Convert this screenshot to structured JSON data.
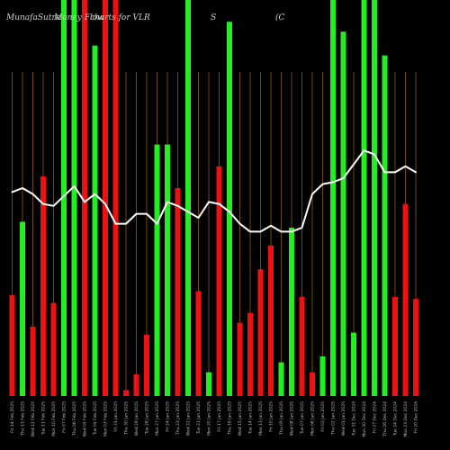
{
  "header": {
    "site": "MunafaSutra",
    "chart_label": "Money Flow",
    "charts_for": "charts for VLR",
    "segment_s": "S",
    "segment_c": "(C"
  },
  "chart_data": {
    "type": "bar",
    "title": "MunafaSutra Money Flow charts for VLR",
    "xlabel": "",
    "ylabel": "",
    "ylim": [
      0,
      100
    ],
    "grid": true,
    "colors": {
      "up": "#22ee22",
      "down": "#ee1111",
      "line": "#ffffff",
      "grid": "#8a5a10",
      "background": "#000000"
    },
    "categories": [
      "Fri 14 Feb 2025",
      "Thu 13 Feb 2025",
      "Wed 12 Feb 2025",
      "Tue 11 Feb 2025",
      "Mon 10 Feb 2025",
      "Fri 07 Feb 2025",
      "Thu 06 Feb 2025",
      "Wed 05 Feb 2025",
      "Tue 04 Feb 2025",
      "Mon 03 Feb 2025",
      "Fri 31 Jan 2025",
      "Thu 30 Jan 2025",
      "Wed 29 Jan 2025",
      "Tue 28 Jan 2025",
      "Mon 27 Jan 2025",
      "Fri 24 Jan 2025",
      "Thu 23 Jan 2025",
      "Wed 22 Jan 2025",
      "Tue 21 Jan 2025",
      "Mon 20 Jan 2025",
      "Fri 17 Jan 2025",
      "Thu 16 Jan 2025",
      "Wed 15 Jan 2025",
      "Tue 14 Jan 2025",
      "Mon 13 Jan 2025",
      "Fri 10 Jan 2025",
      "Thu 09 Jan 2025",
      "Wed 08 Jan 2025",
      "Tue 07 Jan 2025",
      "Mon 06 Jan 2025",
      "Fri 03 Jan 2025",
      "Thu 02 Jan 2025",
      "Wed 01 Jan 2025",
      "Tue 31 Dec 2024",
      "Mon 30 Dec 2024",
      "Fri 27 Dec 2024",
      "Thu 26 Dec 2024",
      "Tue 24 Dec 2024",
      "Mon 23 Dec 2024",
      "Fri 20 Dec 2024"
    ],
    "series": [
      {
        "kind": "bar",
        "values": [
          25.5,
          44,
          17.5,
          55.5,
          23.5,
          100,
          100,
          100,
          88.5,
          100,
          100,
          1.5,
          5.5,
          15.5,
          63.5,
          63.5,
          52.5,
          100,
          26.5,
          6,
          58,
          94.5,
          18.5,
          21,
          32,
          38,
          8.5,
          42.5,
          25,
          6,
          10,
          100,
          92,
          16,
          100,
          100,
          86,
          25,
          48.5,
          24.5
        ],
        "directions": [
          "down",
          "up",
          "down",
          "down",
          "down",
          "up",
          "up",
          "down",
          "up",
          "down",
          "down",
          "down",
          "down",
          "down",
          "up",
          "up",
          "down",
          "up",
          "down",
          "up",
          "down",
          "up",
          "down",
          "down",
          "down",
          "down",
          "up",
          "up",
          "down",
          "down",
          "up",
          "up",
          "up",
          "up",
          "up",
          "up",
          "up",
          "down",
          "down",
          "down"
        ]
      },
      {
        "kind": "line",
        "values": [
          51.5,
          52.5,
          51,
          48.5,
          48,
          50.5,
          53,
          49,
          51,
          48.5,
          43.5,
          43.5,
          46,
          46,
          43.5,
          49,
          48,
          46.5,
          45,
          49,
          48.5,
          46.5,
          43.5,
          41.5,
          41.5,
          43,
          41.5,
          41.5,
          42.5,
          51,
          53.5,
          54,
          55,
          58.5,
          62,
          61,
          56.5,
          56.5,
          58,
          56.5
        ]
      }
    ]
  }
}
